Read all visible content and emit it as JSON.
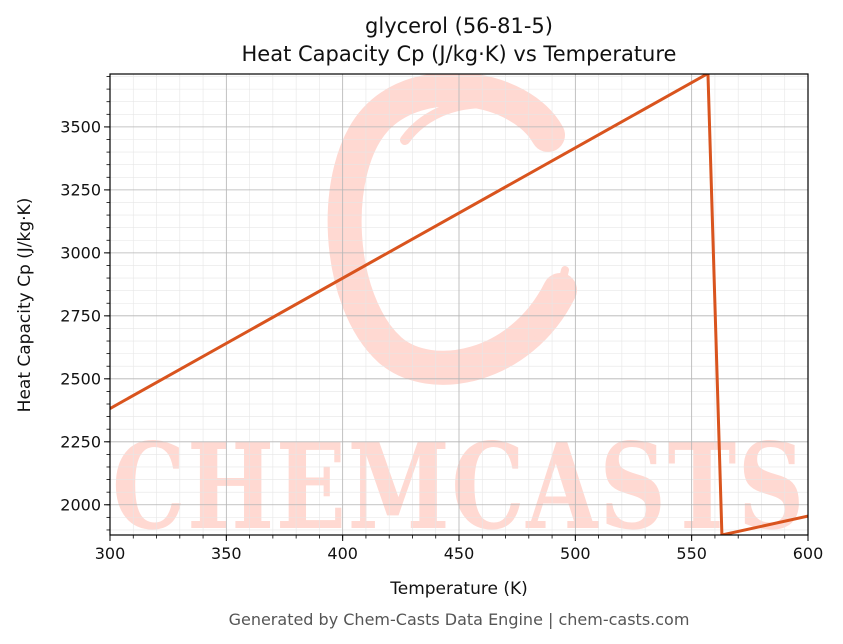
{
  "chart_data": {
    "type": "line",
    "title": "glycerol (56-81-5)",
    "subtitle": "Heat Capacity Cp (J/kg·K) vs Temperature",
    "xlabel": "Temperature (K)",
    "ylabel": "Heat Capacity Cp (J/kg·K)",
    "xlim": [
      300,
      600
    ],
    "ylim": [
      1880,
      3710
    ],
    "xticks": [
      300,
      350,
      400,
      450,
      500,
      550,
      600
    ],
    "yticks": [
      2000,
      2250,
      2500,
      2750,
      3000,
      3250,
      3500
    ],
    "grid": true,
    "series": [
      {
        "color": "#d9541e",
        "x": [
          300,
          557,
          563,
          600
        ],
        "y": [
          2382,
          3712,
          1880,
          1955
        ]
      }
    ]
  },
  "watermark": {
    "text": "CHEMCASTS",
    "color": "#ffd9d2"
  },
  "footer": "Generated by Chem-Casts Data Engine | chem-casts.com"
}
